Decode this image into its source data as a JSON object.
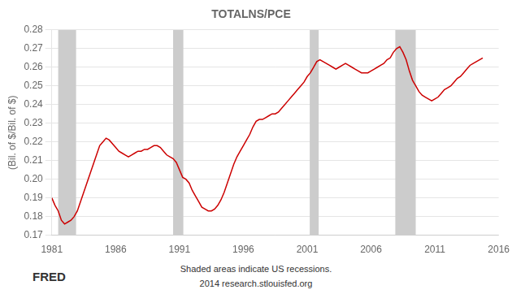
{
  "chart_data": {
    "type": "line",
    "title": "TOTALNS/PCE",
    "ylabel": "(Bil. of $/Bil. of $)",
    "annotations": [
      "Shaded areas indicate US recessions.",
      "2014 research.stlouisfed.org"
    ],
    "logo": "FRED",
    "xlim": [
      1981,
      2016
    ],
    "ylim": [
      0.17,
      0.28
    ],
    "xticks": [
      1981,
      1986,
      1991,
      1996,
      2001,
      2006,
      2011,
      2016
    ],
    "yticks": [
      0.17,
      0.18,
      0.19,
      {
        "value": 0.2,
        "label": "0.20"
      },
      0.21,
      0.22,
      0.23,
      0.24,
      0.25,
      0.26,
      0.27,
      0.28
    ],
    "grid": "y",
    "color": "#cc0000",
    "shade_color": "#cccccc",
    "shaded_ranges": [
      [
        1981.5,
        1982.9
      ],
      [
        1990.5,
        1991.3
      ],
      [
        2001.2,
        2001.9
      ],
      [
        2007.9,
        2009.5
      ]
    ],
    "x": [
      1981.0,
      1981.25,
      1981.5,
      1981.75,
      1982.0,
      1982.25,
      1982.5,
      1982.75,
      1983.0,
      1983.25,
      1983.5,
      1983.75,
      1984.0,
      1984.25,
      1984.5,
      1984.75,
      1985.0,
      1985.25,
      1985.5,
      1985.75,
      1986.0,
      1986.25,
      1986.5,
      1986.75,
      1987.0,
      1987.25,
      1987.5,
      1987.75,
      1988.0,
      1988.25,
      1988.5,
      1988.75,
      1989.0,
      1989.25,
      1989.5,
      1989.75,
      1990.0,
      1990.25,
      1990.5,
      1990.75,
      1991.0,
      1991.25,
      1991.5,
      1991.75,
      1992.0,
      1992.25,
      1992.5,
      1992.75,
      1993.0,
      1993.25,
      1993.5,
      1993.75,
      1994.0,
      1994.25,
      1994.5,
      1994.75,
      1995.0,
      1995.25,
      1995.5,
      1995.75,
      1996.0,
      1996.25,
      1996.5,
      1996.75,
      1997.0,
      1997.25,
      1997.5,
      1997.75,
      1998.0,
      1998.25,
      1998.5,
      1998.75,
      1999.0,
      1999.25,
      1999.5,
      1999.75,
      2000.0,
      2000.25,
      2000.5,
      2000.75,
      2001.0,
      2001.25,
      2001.5,
      2001.75,
      2002.0,
      2002.25,
      2002.5,
      2002.75,
      2003.0,
      2003.25,
      2003.5,
      2003.75,
      2004.0,
      2004.25,
      2004.5,
      2004.75,
      2005.0,
      2005.25,
      2005.5,
      2005.75,
      2006.0,
      2006.25,
      2006.5,
      2006.75,
      2007.0,
      2007.25,
      2007.5,
      2007.75,
      2008.0,
      2008.25,
      2008.5,
      2008.75,
      2009.0,
      2009.25,
      2009.5,
      2009.75,
      2010.0,
      2010.25,
      2010.5,
      2010.75,
      2011.0,
      2011.25,
      2011.5,
      2011.75,
      2012.0,
      2012.25,
      2012.5,
      2012.75,
      2013.0,
      2013.25,
      2013.5,
      2013.75,
      2014.0,
      2014.25,
      2014.5,
      2014.75
    ],
    "values": [
      0.19,
      0.186,
      0.183,
      0.178,
      0.176,
      0.177,
      0.178,
      0.18,
      0.183,
      0.188,
      0.193,
      0.198,
      0.203,
      0.208,
      0.213,
      0.218,
      0.22,
      0.222,
      0.221,
      0.219,
      0.217,
      0.215,
      0.214,
      0.213,
      0.212,
      0.213,
      0.214,
      0.215,
      0.215,
      0.216,
      0.216,
      0.217,
      0.218,
      0.218,
      0.217,
      0.215,
      0.213,
      0.212,
      0.211,
      0.209,
      0.205,
      0.201,
      0.2,
      0.198,
      0.194,
      0.191,
      0.188,
      0.185,
      0.184,
      0.183,
      0.183,
      0.184,
      0.186,
      0.189,
      0.193,
      0.198,
      0.203,
      0.208,
      0.212,
      0.215,
      0.218,
      0.221,
      0.224,
      0.228,
      0.231,
      0.232,
      0.232,
      0.233,
      0.234,
      0.235,
      0.235,
      0.236,
      0.238,
      0.24,
      0.242,
      0.244,
      0.246,
      0.248,
      0.25,
      0.252,
      0.255,
      0.257,
      0.26,
      0.263,
      0.264,
      0.263,
      0.262,
      0.261,
      0.26,
      0.259,
      0.26,
      0.261,
      0.262,
      0.261,
      0.26,
      0.259,
      0.258,
      0.257,
      0.257,
      0.257,
      0.258,
      0.259,
      0.26,
      0.261,
      0.262,
      0.264,
      0.265,
      0.268,
      0.27,
      0.271,
      0.268,
      0.264,
      0.258,
      0.253,
      0.25,
      0.247,
      0.245,
      0.244,
      0.243,
      0.242,
      0.243,
      0.244,
      0.246,
      0.248,
      0.249,
      0.25,
      0.252,
      0.254,
      0.255,
      0.257,
      0.259,
      0.261,
      0.262,
      0.263,
      0.264,
      0.265
    ]
  }
}
